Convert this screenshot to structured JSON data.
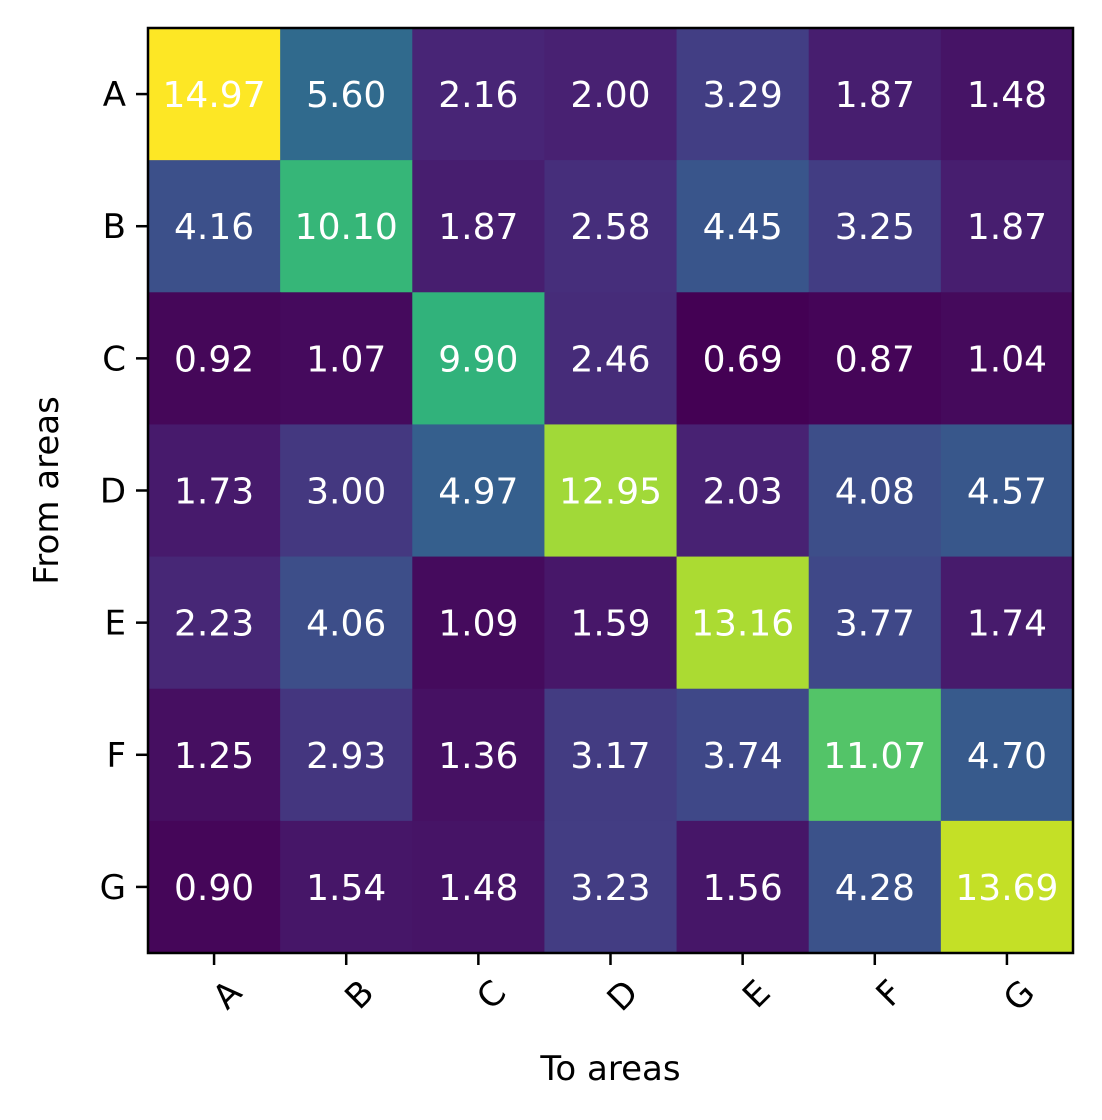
{
  "chart_data": {
    "type": "heatmap",
    "title": "",
    "xlabel": "To areas",
    "ylabel": "From areas",
    "x_categories": [
      "A",
      "B",
      "C",
      "D",
      "E",
      "F",
      "G"
    ],
    "y_categories": [
      "A",
      "B",
      "C",
      "D",
      "E",
      "F",
      "G"
    ],
    "values": [
      [
        14.97,
        5.6,
        2.16,
        2.0,
        3.29,
        1.87,
        1.48
      ],
      [
        4.16,
        10.1,
        1.87,
        2.58,
        4.45,
        3.25,
        1.87
      ],
      [
        0.92,
        1.07,
        9.9,
        2.46,
        0.69,
        0.87,
        1.04
      ],
      [
        1.73,
        3.0,
        4.97,
        12.95,
        2.03,
        4.08,
        4.57
      ],
      [
        2.23,
        4.06,
        1.09,
        1.59,
        13.16,
        3.77,
        1.74
      ],
      [
        1.25,
        2.93,
        1.36,
        3.17,
        3.74,
        11.07,
        4.7
      ],
      [
        0.9,
        1.54,
        1.48,
        3.23,
        1.56,
        4.28,
        13.69
      ]
    ],
    "value_format": "2 decimals",
    "colormap": "viridis",
    "color_range": [
      0.69,
      14.97
    ],
    "x_tick_rotation_deg": 45,
    "legend": "none",
    "grid": false
  }
}
